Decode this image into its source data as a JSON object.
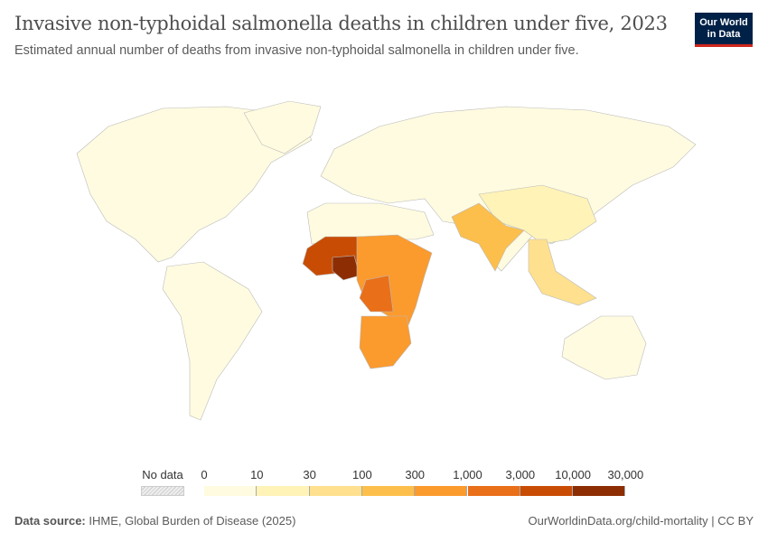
{
  "header": {
    "title": "Invasive non-typhoidal salmonella deaths in children under five, 2023",
    "subtitle": "Estimated annual number of deaths from invasive non-typhoidal salmonella in children under five.",
    "logo_text": "Our World in Data"
  },
  "legend": {
    "no_data_label": "No data",
    "no_data_color": "#eeeeee",
    "ticks": [
      "0",
      "10",
      "30",
      "100",
      "300",
      "1,000",
      "3,000",
      "10,000",
      "30,000"
    ],
    "colors": [
      "#fffbe0",
      "#fff3b8",
      "#fee08e",
      "#fdbf4b",
      "#fb9a2d",
      "#ea6f19",
      "#c94c04",
      "#8c2d04"
    ]
  },
  "footer": {
    "source_label": "Data source:",
    "source": "IHME, Global Burden of Disease (2025)",
    "link": "OurWorldinData.org/child-mortality | CC BY"
  }
}
